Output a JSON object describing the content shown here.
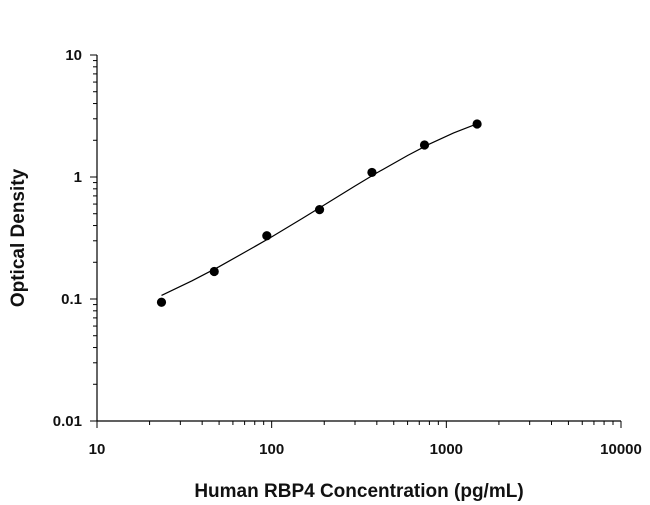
{
  "chart_data": {
    "type": "scatter",
    "title": "",
    "xlabel": "Human RBP4 Concentration (pg/mL)",
    "ylabel": "Optical Density",
    "x_scale": "log",
    "y_scale": "log",
    "xlim": [
      10,
      10000
    ],
    "ylim": [
      0.01,
      10
    ],
    "x_ticks": [
      "10",
      "100",
      "1000",
      "10000"
    ],
    "y_ticks": [
      "0.01",
      "0.1",
      "1",
      "10"
    ],
    "grid": false,
    "legend": "none",
    "series": [
      {
        "x": [
          23.4,
          46.9,
          93.8,
          188,
          375,
          750,
          1500
        ],
        "y": [
          0.094,
          0.168,
          0.33,
          0.54,
          1.09,
          1.83,
          2.72
        ],
        "marker": "filled-circle",
        "color": "#000000"
      }
    ],
    "fit_curve": {
      "x": [
        23.4,
        35,
        50,
        75,
        100,
        150,
        200,
        300,
        400,
        600,
        800,
        1100,
        1500
      ],
      "y": [
        0.107,
        0.141,
        0.184,
        0.255,
        0.323,
        0.458,
        0.589,
        0.843,
        1.08,
        1.5,
        1.86,
        2.3,
        2.73
      ],
      "color": "#000000"
    }
  }
}
